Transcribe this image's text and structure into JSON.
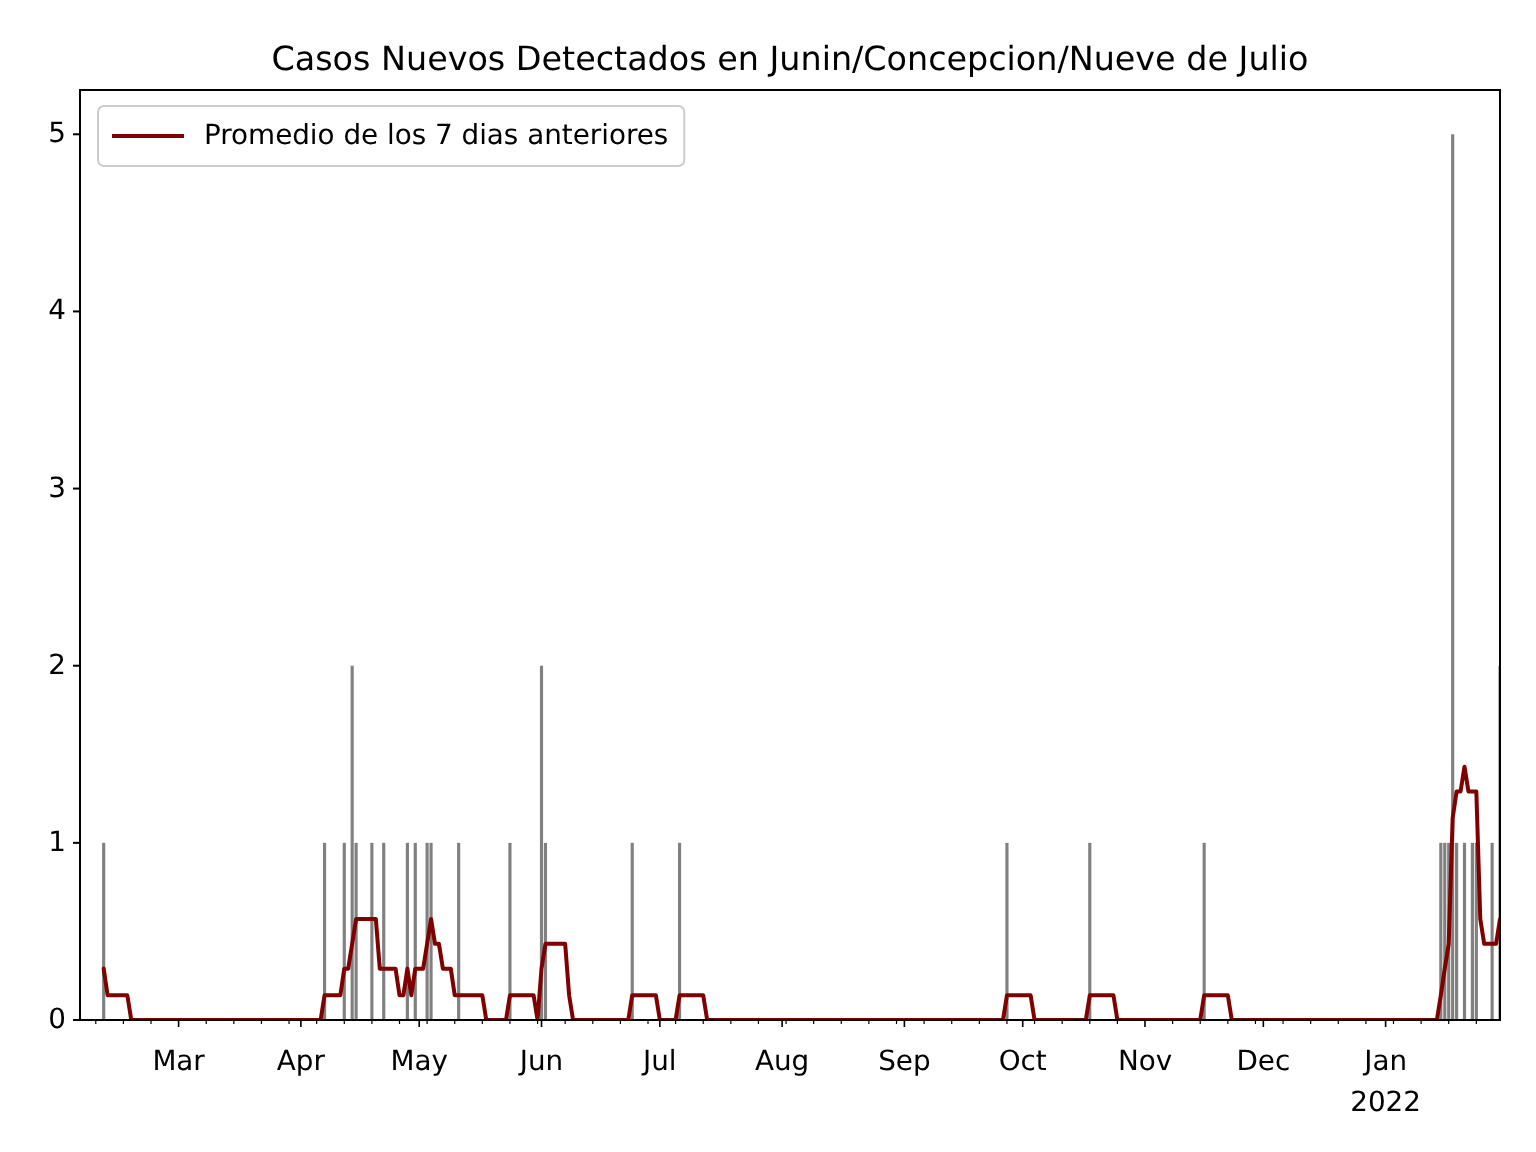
{
  "chart_data": {
    "type": "bar",
    "title": "Casos Nuevos Detectados en Junin/Concepcion/Nueve de Julio",
    "xlim": [
      "2021-02-04",
      "2022-01-30"
    ],
    "xticks": [
      {
        "value": "2021-02-08",
        "label": null
      },
      {
        "value": "2021-02-15",
        "label": null
      },
      {
        "value": "2021-02-22",
        "label": null
      },
      {
        "value": "2021-03-01",
        "label": "Mar"
      },
      {
        "value": "2021-03-08",
        "label": null
      },
      {
        "value": "2021-03-15",
        "label": null
      },
      {
        "value": "2021-03-22",
        "label": null
      },
      {
        "value": "2021-03-29",
        "label": null
      },
      {
        "value": "2021-04-01",
        "label": "Apr"
      },
      {
        "value": "2021-04-05",
        "label": null
      },
      {
        "value": "2021-04-12",
        "label": null
      },
      {
        "value": "2021-04-19",
        "label": null
      },
      {
        "value": "2021-04-26",
        "label": null
      },
      {
        "value": "2021-05-01",
        "label": "May"
      },
      {
        "value": "2021-05-03",
        "label": null
      },
      {
        "value": "2021-05-10",
        "label": null
      },
      {
        "value": "2021-05-17",
        "label": null
      },
      {
        "value": "2021-05-24",
        "label": null
      },
      {
        "value": "2021-05-31",
        "label": null
      },
      {
        "value": "2021-06-01",
        "label": "Jun"
      },
      {
        "value": "2021-06-07",
        "label": null
      },
      {
        "value": "2021-06-14",
        "label": null
      },
      {
        "value": "2021-06-21",
        "label": null
      },
      {
        "value": "2021-06-28",
        "label": null
      },
      {
        "value": "2021-07-01",
        "label": "Jul"
      },
      {
        "value": "2021-07-05",
        "label": null
      },
      {
        "value": "2021-07-12",
        "label": null
      },
      {
        "value": "2021-07-19",
        "label": null
      },
      {
        "value": "2021-07-26",
        "label": null
      },
      {
        "value": "2021-08-01",
        "label": "Aug"
      },
      {
        "value": "2021-08-02",
        "label": null
      },
      {
        "value": "2021-08-09",
        "label": null
      },
      {
        "value": "2021-08-16",
        "label": null
      },
      {
        "value": "2021-08-23",
        "label": null
      },
      {
        "value": "2021-08-30",
        "label": null
      },
      {
        "value": "2021-09-01",
        "label": "Sep"
      },
      {
        "value": "2021-09-06",
        "label": null
      },
      {
        "value": "2021-09-13",
        "label": null
      },
      {
        "value": "2021-09-20",
        "label": null
      },
      {
        "value": "2021-09-27",
        "label": null
      },
      {
        "value": "2021-10-01",
        "label": "Oct"
      },
      {
        "value": "2021-10-04",
        "label": null
      },
      {
        "value": "2021-10-11",
        "label": null
      },
      {
        "value": "2021-10-18",
        "label": null
      },
      {
        "value": "2021-10-25",
        "label": null
      },
      {
        "value": "2021-11-01",
        "label": "Nov"
      },
      {
        "value": "2021-11-08",
        "label": null
      },
      {
        "value": "2021-11-15",
        "label": null
      },
      {
        "value": "2021-11-22",
        "label": null
      },
      {
        "value": "2021-11-29",
        "label": null
      },
      {
        "value": "2021-12-01",
        "label": "Dec"
      },
      {
        "value": "2021-12-06",
        "label": null
      },
      {
        "value": "2021-12-13",
        "label": null
      },
      {
        "value": "2021-12-20",
        "label": null
      },
      {
        "value": "2021-12-27",
        "label": null
      },
      {
        "value": "2022-01-01",
        "label": "Jan\n2022"
      },
      {
        "value": "2022-01-03",
        "label": null
      },
      {
        "value": "2022-01-10",
        "label": null
      },
      {
        "value": "2022-01-17",
        "label": null
      },
      {
        "value": "2022-01-24",
        "label": null
      }
    ],
    "ylim": [
      0,
      5.25
    ],
    "yticks": [
      0,
      1,
      2,
      3,
      4,
      5
    ],
    "legend": "top left",
    "series": [
      {
        "color": "#808080",
        "x": [
          "2021-02-10",
          "2021-04-07",
          "2021-04-12",
          "2021-04-14",
          "2021-04-15",
          "2021-04-19",
          "2021-04-22",
          "2021-04-28",
          "2021-04-30",
          "2021-05-03",
          "2021-05-04",
          "2021-05-11",
          "2021-05-24",
          "2021-06-01",
          "2021-06-02",
          "2021-06-24",
          "2021-07-06",
          "2021-09-27",
          "2021-10-18",
          "2021-11-16",
          "2022-01-15",
          "2022-01-16",
          "2022-01-17",
          "2022-01-18",
          "2022-01-19",
          "2022-01-21",
          "2022-01-23",
          "2022-01-24",
          "2022-01-28",
          "2022-01-30"
        ],
        "values": [
          1,
          1,
          1,
          2,
          1,
          1,
          1,
          1,
          1,
          1,
          1,
          1,
          1,
          2,
          1,
          1,
          1,
          1,
          1,
          1,
          1,
          1,
          1,
          5,
          1,
          1,
          1,
          1,
          1,
          2
        ]
      },
      {
        "type": "line",
        "name": "Promedio de los 7 dias anteriores",
        "color": "#800000",
        "x": [
          "2021-02-10",
          "2021-02-11",
          "2021-02-16",
          "2021-02-17",
          "2021-04-06",
          "2021-04-07",
          "2021-04-11",
          "2021-04-12",
          "2021-04-13",
          "2021-04-14",
          "2021-04-15",
          "2021-04-20",
          "2021-04-21",
          "2021-04-25",
          "2021-04-26",
          "2021-04-27",
          "2021-04-28",
          "2021-04-29",
          "2021-04-30",
          "2021-05-02",
          "2021-05-03",
          "2021-05-04",
          "2021-05-05",
          "2021-05-06",
          "2021-05-07",
          "2021-05-09",
          "2021-05-10",
          "2021-05-17",
          "2021-05-18",
          "2021-05-23",
          "2021-05-24",
          "2021-05-30",
          "2021-05-31",
          "2021-06-01",
          "2021-06-02",
          "2021-06-07",
          "2021-06-08",
          "2021-06-09",
          "2021-06-23",
          "2021-06-24",
          "2021-06-30",
          "2021-07-01",
          "2021-07-05",
          "2021-07-06",
          "2021-07-12",
          "2021-07-13",
          "2021-09-26",
          "2021-09-27",
          "2021-10-03",
          "2021-10-04",
          "2021-10-17",
          "2021-10-18",
          "2021-10-24",
          "2021-10-25",
          "2021-11-15",
          "2021-11-16",
          "2021-11-22",
          "2021-11-23",
          "2022-01-14",
          "2022-01-15",
          "2022-01-16",
          "2022-01-17",
          "2022-01-18",
          "2022-01-19",
          "2022-01-20",
          "2022-01-21",
          "2022-01-22",
          "2022-01-24",
          "2022-01-25",
          "2022-01-26",
          "2022-01-29",
          "2022-01-30"
        ],
        "values": [
          0.29,
          0.14,
          0.14,
          0,
          0,
          0.14,
          0.14,
          0.29,
          0.29,
          0.43,
          0.57,
          0.57,
          0.29,
          0.29,
          0.14,
          0.14,
          0.29,
          0.14,
          0.29,
          0.29,
          0.43,
          0.57,
          0.43,
          0.43,
          0.29,
          0.29,
          0.14,
          0.14,
          0,
          0,
          0.14,
          0.14,
          0,
          0.29,
          0.43,
          0.43,
          0.14,
          0,
          0,
          0.14,
          0.14,
          0,
          0,
          0.14,
          0.14,
          0,
          0,
          0.14,
          0.14,
          0,
          0,
          0.14,
          0.14,
          0,
          0,
          0.14,
          0.14,
          0,
          0,
          0.14,
          0.29,
          0.43,
          1.14,
          1.29,
          1.29,
          1.43,
          1.29,
          1.29,
          0.57,
          0.43,
          0.43,
          0.57
        ]
      }
    ]
  }
}
